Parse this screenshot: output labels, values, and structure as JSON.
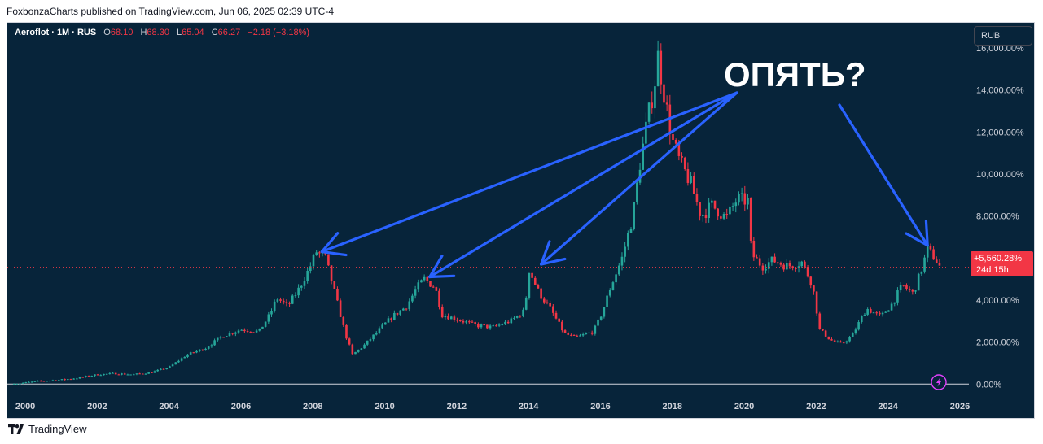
{
  "publish_line": "FoxbonzaCharts published on TradingView.com, Jun 06, 2025 02:39 UTC-4",
  "legend": {
    "symbol": "Aeroflot · 1M · RUS",
    "open_label": "O",
    "open": "68.10",
    "high_label": "H",
    "high": "68.30",
    "low_label": "L",
    "low": "65.04",
    "close_label": "C",
    "close": "66.27",
    "change": "−2.18 (−3.18%)"
  },
  "currency": "RUB",
  "annotation": "ОПЯТЬ?",
  "price_label": {
    "value": "+5,560.28%",
    "countdown": "24d 15h"
  },
  "footer_brand": "TradingView",
  "colors": {
    "background": "#07243a",
    "up": "#26a69a",
    "down": "#f23645",
    "arrow": "#2962ff",
    "text": "#d1d4dc"
  },
  "chart_data": {
    "type": "candlestick",
    "symbol": "Aeroflot",
    "interval": "1M",
    "exchange": "RUS",
    "y_scale": "percent",
    "ylim": [
      -300,
      17200
    ],
    "xlim": [
      1999.5,
      2026.25
    ],
    "y_ticks": [
      {
        "value": 0,
        "label": "0.00%"
      },
      {
        "value": 2000,
        "label": "2,000.00%"
      },
      {
        "value": 4000,
        "label": "4,000.00%"
      },
      {
        "value": 6000,
        "label": "6,000.00%"
      },
      {
        "value": 8000,
        "label": "8,000.00%"
      },
      {
        "value": 10000,
        "label": "10,000.00%"
      },
      {
        "value": 12000,
        "label": "12,000.00%"
      },
      {
        "value": 14000,
        "label": "14,000.00%"
      },
      {
        "value": 16000,
        "label": "16,000.00%"
      }
    ],
    "x_ticks": [
      {
        "value": 2000,
        "label": "2000"
      },
      {
        "value": 2002,
        "label": "2002"
      },
      {
        "value": 2004,
        "label": "2004"
      },
      {
        "value": 2006,
        "label": "2006"
      },
      {
        "value": 2008,
        "label": "2008"
      },
      {
        "value": 2010,
        "label": "2010"
      },
      {
        "value": 2012,
        "label": "2012"
      },
      {
        "value": 2014,
        "label": "2014"
      },
      {
        "value": 2016,
        "label": "2016"
      },
      {
        "value": 2018,
        "label": "2018"
      },
      {
        "value": 2020,
        "label": "2020"
      },
      {
        "value": 2022,
        "label": "2022"
      },
      {
        "value": 2024,
        "label": "2024"
      },
      {
        "value": 2026,
        "label": "2026"
      }
    ],
    "baseline": 0,
    "last_value": 5560.28,
    "close_path": [
      [
        1999.6,
        0
      ],
      [
        2000.0,
        60
      ],
      [
        2000.5,
        150
      ],
      [
        2001.0,
        200
      ],
      [
        2001.5,
        300
      ],
      [
        2002.0,
        450
      ],
      [
        2002.5,
        500
      ],
      [
        2003.0,
        450
      ],
      [
        2003.5,
        550
      ],
      [
        2004.0,
        800
      ],
      [
        2004.5,
        1400
      ],
      [
        2005.0,
        1700
      ],
      [
        2005.5,
        2300
      ],
      [
        2006.0,
        2600
      ],
      [
        2006.5,
        2500
      ],
      [
        2006.8,
        3300
      ],
      [
        2007.0,
        4100
      ],
      [
        2007.3,
        3700
      ],
      [
        2007.6,
        4500
      ],
      [
        2007.9,
        5500
      ],
      [
        2008.1,
        6300
      ],
      [
        2008.35,
        6000
      ],
      [
        2008.6,
        4400
      ],
      [
        2008.9,
        2400
      ],
      [
        2009.1,
        1400
      ],
      [
        2009.4,
        1800
      ],
      [
        2009.8,
        2500
      ],
      [
        2010.2,
        3200
      ],
      [
        2010.6,
        3700
      ],
      [
        2010.9,
        4600
      ],
      [
        2011.1,
        5000
      ],
      [
        2011.4,
        4600
      ],
      [
        2011.6,
        3300
      ],
      [
        2012.0,
        3100
      ],
      [
        2012.5,
        2800
      ],
      [
        2013.0,
        2700
      ],
      [
        2013.5,
        3000
      ],
      [
        2013.9,
        3500
      ],
      [
        2014.0,
        5500
      ],
      [
        2014.3,
        4300
      ],
      [
        2014.6,
        3600
      ],
      [
        2015.0,
        2400
      ],
      [
        2015.3,
        2200
      ],
      [
        2015.8,
        2500
      ],
      [
        2016.0,
        3200
      ],
      [
        2016.3,
        4700
      ],
      [
        2016.6,
        6000
      ],
      [
        2016.9,
        8000
      ],
      [
        2017.1,
        10500
      ],
      [
        2017.3,
        12500
      ],
      [
        2017.5,
        14200
      ],
      [
        2017.6,
        15600
      ],
      [
        2017.8,
        13500
      ],
      [
        2018.0,
        11600
      ],
      [
        2018.2,
        10600
      ],
      [
        2018.5,
        9600
      ],
      [
        2018.8,
        8000
      ],
      [
        2019.1,
        8500
      ],
      [
        2019.5,
        7900
      ],
      [
        2019.8,
        8800
      ],
      [
        2020.1,
        8700
      ],
      [
        2020.2,
        6200
      ],
      [
        2020.5,
        5600
      ],
      [
        2020.8,
        5900
      ],
      [
        2021.2,
        5600
      ],
      [
        2021.6,
        5800
      ],
      [
        2021.9,
        4700
      ],
      [
        2022.1,
        2600
      ],
      [
        2022.4,
        2100
      ],
      [
        2022.7,
        1900
      ],
      [
        2023.0,
        2300
      ],
      [
        2023.4,
        3600
      ],
      [
        2023.8,
        3200
      ],
      [
        2024.1,
        3800
      ],
      [
        2024.4,
        4700
      ],
      [
        2024.7,
        4300
      ],
      [
        2024.9,
        5300
      ],
      [
        2025.1,
        6400
      ],
      [
        2025.3,
        6000
      ],
      [
        2025.45,
        5560
      ]
    ],
    "annotation": {
      "text": "ОПЯТЬ?",
      "points_to_peaks": [
        2008.1,
        2011.1,
        2014.0,
        2025.1
      ]
    }
  }
}
